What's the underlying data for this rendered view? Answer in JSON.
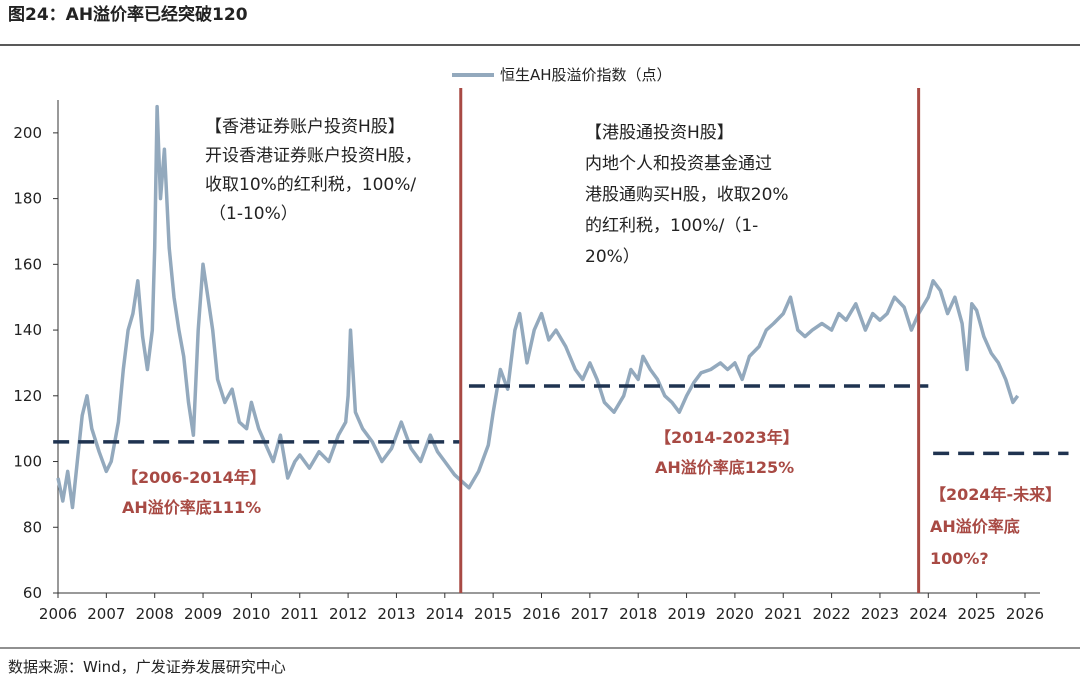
{
  "chart_data": {
    "type": "line",
    "title": "图24：AH溢价率已经突破120",
    "source": "数据来源：Wind，广发证券发展研究中心",
    "xlim": [
      2006,
      2026
    ],
    "xticks": [
      2006,
      2007,
      2008,
      2009,
      2010,
      2011,
      2012,
      2013,
      2014,
      2015,
      2016,
      2017,
      2018,
      2019,
      2020,
      2021,
      2022,
      2023,
      2024,
      2025,
      2026
    ],
    "ylim": [
      60,
      210
    ],
    "yticks": [
      60,
      80,
      100,
      120,
      140,
      160,
      180,
      200
    ],
    "x": [
      2006.0,
      2006.1,
      2006.2,
      2006.3,
      2006.4,
      2006.5,
      2006.6,
      2006.7,
      2006.85,
      2007.0,
      2007.1,
      2007.25,
      2007.35,
      2007.45,
      2007.55,
      2007.65,
      2007.75,
      2007.85,
      2007.95,
      2008.0,
      2008.05,
      2008.12,
      2008.2,
      2008.3,
      2008.4,
      2008.5,
      2008.6,
      2008.7,
      2008.8,
      2008.9,
      2009.0,
      2009.1,
      2009.2,
      2009.3,
      2009.45,
      2009.6,
      2009.75,
      2009.9,
      2010.0,
      2010.15,
      2010.3,
      2010.45,
      2010.6,
      2010.75,
      2010.9,
      2011.0,
      2011.2,
      2011.4,
      2011.6,
      2011.8,
      2011.95,
      2012.0,
      2012.05,
      2012.15,
      2012.3,
      2012.5,
      2012.7,
      2012.9,
      2013.1,
      2013.3,
      2013.5,
      2013.7,
      2013.85,
      2014.0,
      2014.2,
      2014.35,
      2014.5,
      2014.7,
      2014.9,
      2015.0,
      2015.15,
      2015.3,
      2015.45,
      2015.55,
      2015.7,
      2015.85,
      2016.0,
      2016.15,
      2016.3,
      2016.5,
      2016.7,
      2016.85,
      2017.0,
      2017.15,
      2017.3,
      2017.5,
      2017.7,
      2017.85,
      2018.0,
      2018.1,
      2018.25,
      2018.4,
      2018.55,
      2018.7,
      2018.85,
      2019.0,
      2019.15,
      2019.3,
      2019.5,
      2019.7,
      2019.85,
      2020.0,
      2020.15,
      2020.3,
      2020.5,
      2020.65,
      2020.8,
      2021.0,
      2021.15,
      2021.3,
      2021.45,
      2021.6,
      2021.8,
      2022.0,
      2022.15,
      2022.3,
      2022.5,
      2022.7,
      2022.85,
      2023.0,
      2023.15,
      2023.3,
      2023.5,
      2023.65,
      2023.8,
      2024.0,
      2024.1,
      2024.25,
      2024.4,
      2024.55,
      2024.7,
      2024.8,
      2024.9,
      2025.0,
      2025.15,
      2025.3,
      2025.45,
      2025.6,
      2025.75,
      2025.85
    ],
    "series": [
      {
        "name": "恒生AH股溢价指数（点）",
        "color": "#93a9bd",
        "values": [
          95,
          88,
          97,
          86,
          100,
          114,
          120,
          110,
          103,
          97,
          100,
          112,
          128,
          140,
          145,
          155,
          138,
          128,
          140,
          165,
          208,
          180,
          195,
          165,
          150,
          140,
          132,
          118,
          108,
          140,
          160,
          150,
          140,
          125,
          118,
          122,
          112,
          110,
          118,
          110,
          105,
          100,
          108,
          95,
          100,
          102,
          98,
          103,
          100,
          108,
          112,
          120,
          140,
          115,
          110,
          106,
          100,
          104,
          112,
          104,
          100,
          108,
          103,
          100,
          96,
          94,
          92,
          97,
          105,
          115,
          128,
          122,
          140,
          145,
          130,
          140,
          145,
          137,
          140,
          135,
          128,
          125,
          130,
          125,
          118,
          115,
          120,
          128,
          125,
          132,
          128,
          125,
          120,
          118,
          115,
          120,
          124,
          127,
          128,
          130,
          128,
          130,
          125,
          132,
          135,
          140,
          142,
          145,
          150,
          140,
          138,
          140,
          142,
          140,
          145,
          143,
          148,
          140,
          145,
          143,
          145,
          150,
          147,
          140,
          145,
          150,
          155,
          152,
          145,
          150,
          142,
          128,
          148,
          146,
          138,
          133,
          130,
          125,
          118,
          120
        ]
      }
    ],
    "reference_lines": [
      {
        "y": 106,
        "x": [
          2005.9,
          2014.3
        ]
      },
      {
        "y": 123,
        "x": [
          2014.5,
          2024.0
        ]
      },
      {
        "y": 102.5,
        "x": [
          2024.1,
          2026.9
        ]
      }
    ],
    "vlines": [
      2014.33,
      2023.8
    ],
    "annotations": [
      {
        "lines": [
          "【香港证券账户投资H股】",
          "开设香港证券账户投资H股，",
          "收取10%的红利税，100%/",
          "（1-10%）"
        ]
      },
      {
        "lines": [
          "【港股通投资H股】",
          "内地个人和投资基金通过",
          "港股通购买H股，收取20%",
          "的红利税，100%/（1-",
          "20%）"
        ]
      },
      {
        "lines": [
          "【2006-2014年】",
          "AH溢价率底111%"
        ]
      },
      {
        "lines": [
          "【2014-2023年】",
          "AH溢价率底125%"
        ]
      },
      {
        "lines": [
          "【2024年-未来】",
          "AH溢价率底",
          "100%?"
        ]
      }
    ]
  }
}
